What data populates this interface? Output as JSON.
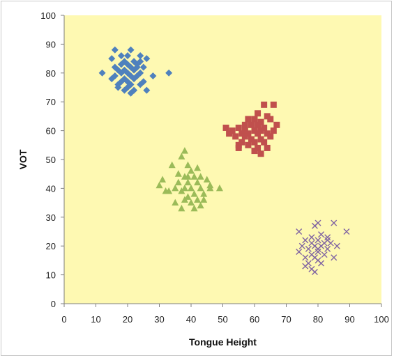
{
  "chart_data": {
    "type": "scatter",
    "title": "",
    "xlabel": "Tongue Height",
    "ylabel": "VOT",
    "xlim": [
      0,
      100
    ],
    "ylim": [
      0,
      100
    ],
    "x_ticks": [
      0,
      10,
      20,
      30,
      40,
      50,
      60,
      70,
      80,
      90,
      100
    ],
    "y_ticks": [
      0,
      10,
      20,
      30,
      40,
      50,
      60,
      70,
      80,
      90,
      100
    ],
    "grid": false,
    "legend": "none",
    "plot_background": "#fef9b2",
    "series": [
      {
        "marker": "diamond",
        "color": "#4f81bd",
        "points": [
          [
            16,
            88
          ],
          [
            21,
            88
          ],
          [
            24,
            86
          ],
          [
            26,
            85
          ],
          [
            15,
            85
          ],
          [
            19,
            84
          ],
          [
            22,
            84
          ],
          [
            18,
            83
          ],
          [
            20,
            83
          ],
          [
            23,
            83
          ],
          [
            16,
            82
          ],
          [
            21,
            82
          ],
          [
            25,
            82
          ],
          [
            17,
            81
          ],
          [
            19,
            81
          ],
          [
            22,
            81
          ],
          [
            20,
            80
          ],
          [
            18,
            80
          ],
          [
            24,
            80
          ],
          [
            12,
            80
          ],
          [
            33,
            80
          ],
          [
            16,
            79
          ],
          [
            21,
            79
          ],
          [
            23,
            79
          ],
          [
            28,
            79
          ],
          [
            19,
            78
          ],
          [
            22,
            78
          ],
          [
            15,
            78
          ],
          [
            25,
            77
          ],
          [
            18,
            77
          ],
          [
            21,
            76
          ],
          [
            24,
            76
          ],
          [
            17,
            75
          ],
          [
            20,
            75
          ],
          [
            22,
            74
          ],
          [
            26,
            74
          ],
          [
            19,
            74
          ],
          [
            21,
            73
          ],
          [
            23,
            82
          ],
          [
            20,
            86
          ],
          [
            18,
            86
          ],
          [
            24,
            84
          ],
          [
            20,
            77
          ],
          [
            17,
            76
          ]
        ]
      },
      {
        "marker": "square",
        "color": "#c0504d",
        "points": [
          [
            63,
            69
          ],
          [
            66,
            69
          ],
          [
            61,
            66
          ],
          [
            64,
            65
          ],
          [
            58,
            64
          ],
          [
            60,
            64
          ],
          [
            62,
            63
          ],
          [
            57,
            62
          ],
          [
            59,
            62
          ],
          [
            61,
            62
          ],
          [
            63,
            61
          ],
          [
            55,
            61
          ],
          [
            57,
            60
          ],
          [
            60,
            60
          ],
          [
            62,
            60
          ],
          [
            66,
            60
          ],
          [
            51,
            61
          ],
          [
            53,
            60
          ],
          [
            56,
            59
          ],
          [
            58,
            59
          ],
          [
            61,
            59
          ],
          [
            64,
            59
          ],
          [
            54,
            58
          ],
          [
            57,
            58
          ],
          [
            59,
            57
          ],
          [
            62,
            57
          ],
          [
            65,
            58
          ],
          [
            56,
            56
          ],
          [
            60,
            56
          ],
          [
            63,
            56
          ],
          [
            55,
            55
          ],
          [
            58,
            55
          ],
          [
            61,
            54
          ],
          [
            64,
            54
          ],
          [
            55,
            54
          ],
          [
            60,
            53
          ],
          [
            62,
            52
          ],
          [
            67,
            62
          ],
          [
            65,
            64
          ],
          [
            52,
            59
          ]
        ]
      },
      {
        "marker": "triangle",
        "color": "#9bbb59",
        "points": [
          [
            38,
            53
          ],
          [
            37,
            51
          ],
          [
            39,
            48
          ],
          [
            34,
            48
          ],
          [
            42,
            47
          ],
          [
            40,
            46
          ],
          [
            36,
            45
          ],
          [
            38,
            44
          ],
          [
            41,
            44
          ],
          [
            43,
            44
          ],
          [
            31,
            43
          ],
          [
            36,
            42
          ],
          [
            39,
            42
          ],
          [
            42,
            42
          ],
          [
            45,
            43
          ],
          [
            30,
            41
          ],
          [
            35,
            40
          ],
          [
            38,
            40
          ],
          [
            40,
            40
          ],
          [
            43,
            40
          ],
          [
            46,
            40
          ],
          [
            49,
            40
          ],
          [
            33,
            39
          ],
          [
            37,
            39
          ],
          [
            41,
            38
          ],
          [
            44,
            38
          ],
          [
            39,
            37
          ],
          [
            42,
            36
          ],
          [
            38,
            36
          ],
          [
            35,
            35
          ],
          [
            40,
            35
          ],
          [
            43,
            34
          ],
          [
            37,
            33
          ],
          [
            41,
            33
          ],
          [
            46,
            41
          ],
          [
            32,
            39
          ],
          [
            39,
            44
          ],
          [
            44,
            36
          ]
        ]
      },
      {
        "marker": "x",
        "color": "#8064a2",
        "points": [
          [
            80,
            28
          ],
          [
            85,
            28
          ],
          [
            79,
            27
          ],
          [
            74,
            25
          ],
          [
            89,
            25
          ],
          [
            81,
            24
          ],
          [
            78,
            23
          ],
          [
            83,
            23
          ],
          [
            76,
            22
          ],
          [
            80,
            22
          ],
          [
            82,
            21
          ],
          [
            84,
            21
          ],
          [
            75,
            20
          ],
          [
            79,
            20
          ],
          [
            81,
            20
          ],
          [
            86,
            20
          ],
          [
            77,
            19
          ],
          [
            80,
            19
          ],
          [
            83,
            19
          ],
          [
            74,
            18
          ],
          [
            78,
            17
          ],
          [
            82,
            17
          ],
          [
            79,
            16
          ],
          [
            76,
            16
          ],
          [
            80,
            15
          ],
          [
            85,
            16
          ],
          [
            77,
            14
          ],
          [
            81,
            14
          ],
          [
            76,
            13
          ],
          [
            78,
            12
          ],
          [
            79,
            11
          ],
          [
            83,
            22
          ],
          [
            80,
            18
          ],
          [
            78,
            21
          ]
        ]
      }
    ]
  }
}
